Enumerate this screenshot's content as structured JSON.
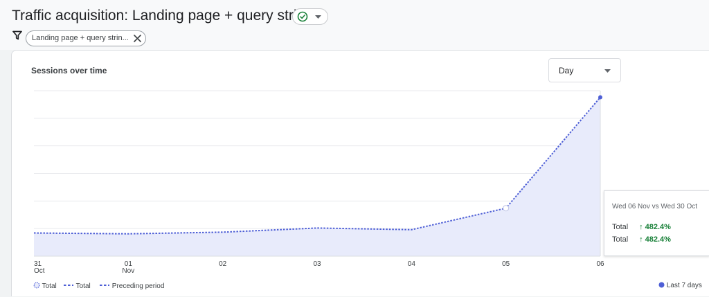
{
  "header": {
    "title": "Traffic acquisition: Landing page + query string",
    "filter_label": "Landing page + query strin..."
  },
  "card": {
    "title": "Sessions over time",
    "granularity": "Day"
  },
  "colors": {
    "series": "#4e5fd6",
    "area": "#e8ebfb",
    "positive": "#188038"
  },
  "chart_data": {
    "type": "line",
    "title": "Sessions over time",
    "x": [
      "31 Oct",
      "01 Nov",
      "02",
      "03",
      "04",
      "05",
      "06"
    ],
    "x_tick_labels": [
      {
        "line1": "31",
        "line2": "Oct"
      },
      {
        "line1": "01",
        "line2": "Nov"
      },
      {
        "line1": "02",
        "line2": ""
      },
      {
        "line1": "03",
        "line2": ""
      },
      {
        "line1": "04",
        "line2": ""
      },
      {
        "line1": "05",
        "line2": ""
      },
      {
        "line1": "06",
        "line2": ""
      }
    ],
    "y_scale_max": 100,
    "gridlines": 6,
    "series": [
      {
        "name": "Total",
        "values": [
          14,
          13.5,
          14.5,
          17,
          16,
          29,
          96
        ]
      }
    ],
    "legend": {
      "items": [
        "Total",
        "Total",
        "Preceding period"
      ],
      "right": "Last 7 days"
    },
    "tooltip": {
      "header": "Wed 06 Nov vs Wed 30 Oct",
      "rows": [
        {
          "name": "Total",
          "value": "↑ 482.4%"
        },
        {
          "name": "Total",
          "value": "↑ 482.4%"
        }
      ]
    }
  }
}
